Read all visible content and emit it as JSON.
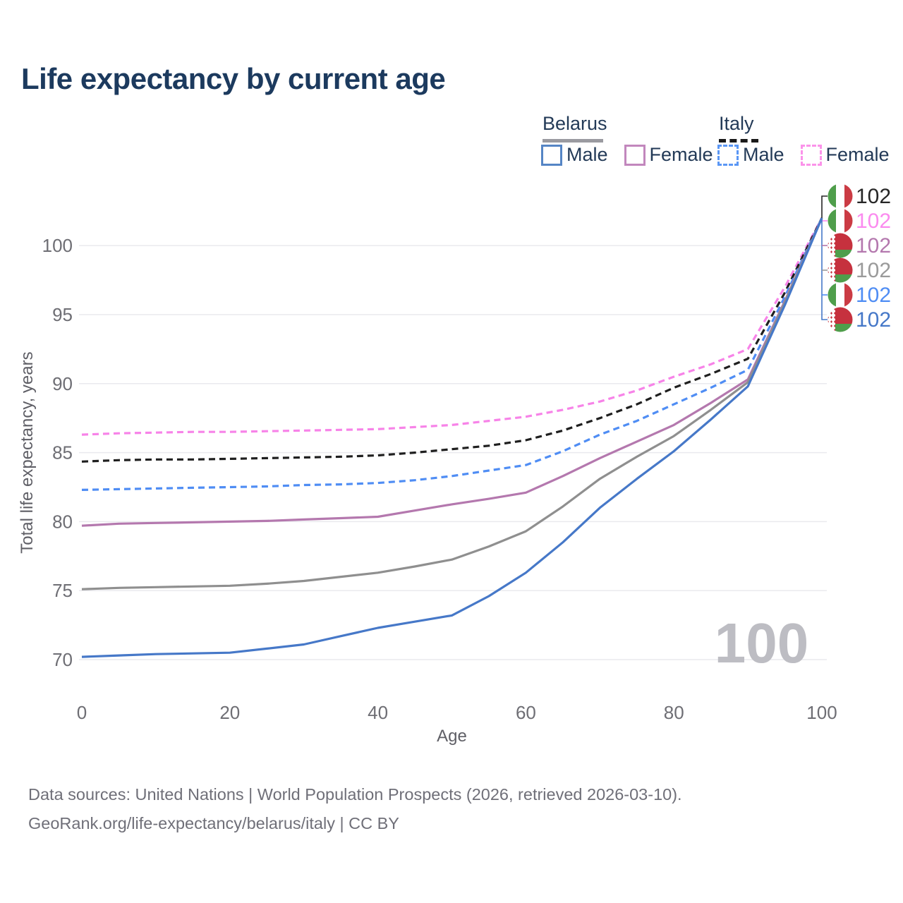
{
  "title": "Life expectancy by current age",
  "legend": {
    "groups": [
      {
        "label": "Belarus",
        "line_style": "solid",
        "line_color": "#9a9aa0",
        "items": [
          {
            "label": "Male",
            "color": "#5585c5"
          },
          {
            "label": "Female",
            "color": "#c287bd"
          }
        ]
      },
      {
        "label": "Italy",
        "line_style": "dashed",
        "line_color": "#1a1a1a",
        "items": [
          {
            "label": "Male",
            "color": "#5b97f5"
          },
          {
            "label": "Female",
            "color": "#fb93ea"
          }
        ]
      }
    ]
  },
  "watermark_age": "100",
  "footer": {
    "line1": "Data sources: United Nations | World Population Prospects (2026, retrieved 2026-03-10).",
    "line2": "GeoRank.org/life-expectancy/belarus/italy | CC BY"
  },
  "chart_data": {
    "type": "line",
    "title": "Life expectancy by current age",
    "xlabel": "Age",
    "ylabel": "Total life expectancy, years",
    "xlim": [
      0,
      100
    ],
    "ylim": [
      70,
      102
    ],
    "x_ticks": [
      0,
      20,
      40,
      60,
      80,
      100
    ],
    "y_ticks": [
      70,
      75,
      80,
      85,
      90,
      95,
      100
    ],
    "grid": "horizontal",
    "grid_color": "#eaeaee",
    "axis_text_color": "#6e6e74",
    "x": [
      0,
      5,
      10,
      15,
      20,
      25,
      30,
      35,
      40,
      45,
      50,
      55,
      60,
      65,
      70,
      75,
      80,
      85,
      90,
      95,
      100
    ],
    "series": [
      {
        "name": "Italy Female",
        "country": "italy",
        "sex": "female",
        "color": "#f783e8",
        "dash": true,
        "values": [
          86.3,
          86.4,
          86.45,
          86.5,
          86.5,
          86.55,
          86.6,
          86.65,
          86.7,
          86.85,
          87.0,
          87.3,
          87.6,
          88.1,
          88.7,
          89.5,
          90.5,
          91.4,
          92.5,
          97.0,
          102
        ]
      },
      {
        "name": "Italy Both sexes",
        "country": "italy",
        "sex": "both",
        "color": "#1f1f1f",
        "dash": true,
        "values": [
          84.35,
          84.45,
          84.5,
          84.5,
          84.55,
          84.6,
          84.65,
          84.7,
          84.8,
          85.0,
          85.25,
          85.5,
          85.9,
          86.6,
          87.5,
          88.5,
          89.7,
          90.7,
          91.8,
          96.6,
          102
        ]
      },
      {
        "name": "Italy Male",
        "country": "italy",
        "sex": "male",
        "color": "#4f8df4",
        "dash": true,
        "values": [
          82.3,
          82.35,
          82.4,
          82.45,
          82.5,
          82.55,
          82.65,
          82.7,
          82.8,
          83.0,
          83.3,
          83.7,
          84.1,
          85.1,
          86.3,
          87.3,
          88.5,
          89.7,
          91.0,
          96.3,
          102
        ]
      },
      {
        "name": "Belarus Female",
        "country": "belarus",
        "sex": "female",
        "color": "#b478ae",
        "dash": false,
        "values": [
          79.7,
          79.85,
          79.9,
          79.95,
          80.0,
          80.05,
          80.15,
          80.25,
          80.35,
          80.8,
          81.25,
          81.65,
          82.1,
          83.3,
          84.6,
          85.8,
          87.0,
          88.6,
          90.3,
          96.0,
          102
        ]
      },
      {
        "name": "Belarus Both sexes",
        "country": "belarus",
        "sex": "both",
        "color": "#8f8f8f",
        "dash": false,
        "values": [
          75.1,
          75.2,
          75.25,
          75.3,
          75.35,
          75.5,
          75.7,
          76.0,
          76.3,
          76.75,
          77.25,
          78.2,
          79.3,
          81.1,
          83.1,
          84.7,
          86.2,
          88.1,
          90.1,
          95.9,
          102
        ]
      },
      {
        "name": "Belarus Male",
        "country": "belarus",
        "sex": "male",
        "color": "#4678c8",
        "dash": false,
        "values": [
          70.2,
          70.3,
          70.4,
          70.45,
          70.5,
          70.8,
          71.1,
          71.7,
          72.3,
          72.75,
          73.2,
          74.6,
          76.3,
          78.5,
          81.0,
          83.1,
          85.1,
          87.4,
          89.8,
          95.7,
          102
        ]
      }
    ],
    "end_labels": [
      {
        "series": "Italy Both sexes",
        "flag": "italy",
        "value": "102",
        "color": "#262626"
      },
      {
        "series": "Italy Female",
        "flag": "italy",
        "value": "102",
        "color": "#fb8bef"
      },
      {
        "series": "Belarus Female",
        "flag": "belarus",
        "value": "102",
        "color": "#b478ae"
      },
      {
        "series": "Belarus Both sexes",
        "flag": "belarus",
        "value": "102",
        "color": "#9a9a9a"
      },
      {
        "series": "Italy Male",
        "flag": "italy",
        "value": "102",
        "color": "#4f8df4"
      },
      {
        "series": "Belarus Male",
        "flag": "belarus",
        "value": "102",
        "color": "#4678c8"
      }
    ],
    "flag_colors": {
      "italy": {
        "green": "#4f9e4b",
        "white": "#ffffff",
        "red": "#cb3b44"
      },
      "belarus": {
        "red": "#c6313e",
        "green": "#4f9e4b",
        "ornament": "#c6313e"
      }
    }
  }
}
